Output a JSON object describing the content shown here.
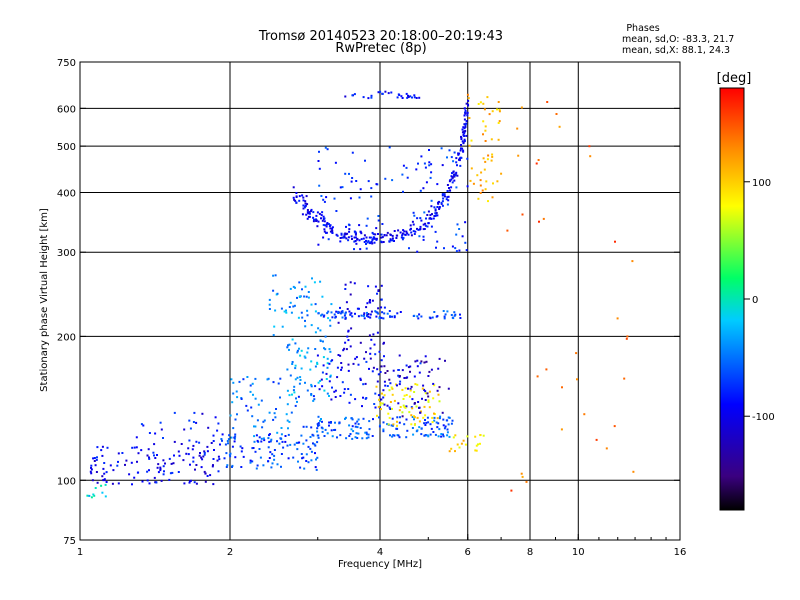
{
  "chart_data": {
    "type": "scatter",
    "title": "Tromsø 20140523 20:18:00–20:19:43",
    "subtitle": "RwPretec (8p)",
    "xlabel": "Frequency [MHz]",
    "ylabel": "Stationary phase Virtual Height [km]",
    "x_scale": "log2",
    "y_scale": "log",
    "xlim": [
      1,
      16
    ],
    "ylim": [
      75,
      750
    ],
    "x_ticks": [
      "1",
      "2",
      "4",
      "6",
      "8",
      "10",
      "16"
    ],
    "y_ticks": [
      "75",
      "100",
      "200",
      "300",
      "400",
      "500",
      "600",
      "750"
    ],
    "x_grid": [
      2,
      4,
      6,
      8,
      10
    ],
    "y_grid": [
      100,
      200,
      300,
      400,
      500,
      600
    ],
    "phase_header": {
      "title": "Phases",
      "line_o": "mean, sd,O: -83.3, 21.7",
      "line_x": "mean, sd,X: 88.1, 24.3"
    },
    "colorbar": {
      "label": "[deg]",
      "range": [
        -180,
        180
      ],
      "ticks": [
        "100",
        "0",
        "-100"
      ],
      "tick_values": [
        100,
        0,
        -100
      ]
    },
    "traces": [
      {
        "x_range": [
          1.02,
          1.15
        ],
        "y_range": [
          92,
          98
        ],
        "phase": -15,
        "n": 10
      },
      {
        "x_range": [
          1.05,
          1.9
        ],
        "y_range": [
          98,
          118
        ],
        "phase": -95,
        "n": 120
      },
      {
        "x_range": [
          1.3,
          1.9
        ],
        "y_range": [
          110,
          140
        ],
        "phase": -90,
        "n": 40
      },
      {
        "x_range": [
          1.9,
          3.0
        ],
        "y_range": [
          105,
          125
        ],
        "phase": -70,
        "n": 110
      },
      {
        "x_range": [
          2.0,
          3.0
        ],
        "y_range": [
          118,
          165
        ],
        "phase": -55,
        "n": 80
      },
      {
        "x_range": [
          2.4,
          3.2
        ],
        "y_range": [
          200,
          270
        ],
        "phase": -40,
        "n": 60
      },
      {
        "x_range": [
          2.6,
          3.2
        ],
        "y_range": [
          150,
          200
        ],
        "phase": -35,
        "n": 60
      },
      {
        "x_range": [
          2.9,
          5.6
        ],
        "y_range": [
          122,
          136
        ],
        "phase": -60,
        "n": 150
      },
      {
        "x_range": [
          3.0,
          5.0
        ],
        "y_range": [
          140,
          185
        ],
        "phase": -90,
        "n": 90
      },
      {
        "x_range": [
          3.3,
          4.1
        ],
        "y_range": [
          170,
          260
        ],
        "phase": -100,
        "n": 70
      },
      {
        "x_range": [
          3.0,
          5.8
        ],
        "y_range": [
          218,
          226
        ],
        "phase": -70,
        "n": 80
      },
      {
        "x_range": [
          3.9,
          5.3
        ],
        "y_range": [
          130,
          160
        ],
        "phase": 90,
        "n": 70
      },
      {
        "x_range": [
          4.0,
          5.5
        ],
        "y_range": [
          135,
          180
        ],
        "phase": -120,
        "n": 40
      },
      {
        "x_range": [
          5.5,
          6.5
        ],
        "y_range": [
          115,
          125
        ],
        "phase": 95,
        "n": 20
      },
      {
        "x_range": [
          3.4,
          4.8
        ],
        "y_range": [
          630,
          650
        ],
        "phase": -90,
        "n": 30
      },
      {
        "x_range": [
          6.0,
          7.0
        ],
        "y_range": [
          380,
          650
        ],
        "phase": 110,
        "n": 50
      },
      {
        "x_range": [
          3.0,
          6.0
        ],
        "y_range": [
          300,
          500
        ],
        "phase": -75,
        "n": 120
      },
      {
        "x_range": [
          7.0,
          13.0
        ],
        "y_range": [
          95,
          620
        ],
        "phase": 140,
        "n": 35
      }
    ],
    "curve_trace": {
      "points": [
        [
          2.7,
          400
        ],
        [
          2.9,
          360
        ],
        [
          3.2,
          335
        ],
        [
          3.6,
          322
        ],
        [
          4.0,
          320
        ],
        [
          4.5,
          330
        ],
        [
          5.0,
          350
        ],
        [
          5.4,
          390
        ],
        [
          5.7,
          450
        ],
        [
          5.9,
          520
        ],
        [
          6.0,
          620
        ]
      ],
      "phase": -95,
      "n": 320
    }
  }
}
